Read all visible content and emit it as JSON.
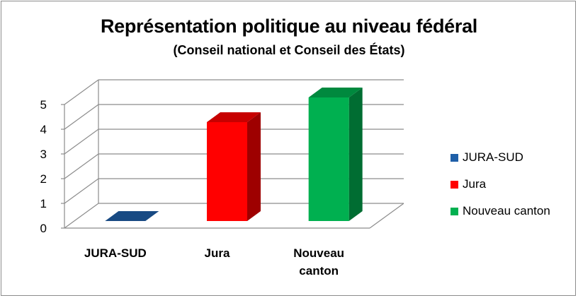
{
  "chart_data": {
    "type": "bar",
    "title": "Représentation politique au niveau fédéral",
    "subtitle": "(Conseil national et Conseil des États)",
    "categories": [
      "JURA-SUD",
      "Jura",
      "Nouveau canton"
    ],
    "category_labels": [
      [
        "JURA-SUD"
      ],
      [
        "Jura"
      ],
      [
        "Nouveau",
        "canton"
      ]
    ],
    "values": [
      0,
      4,
      5
    ],
    "colors": [
      "#1f5fa8",
      "#ff0000",
      "#00b050"
    ],
    "ylim": [
      0,
      5
    ],
    "yticks": [
      0,
      1,
      2,
      3,
      4,
      5
    ],
    "grid": true,
    "legend": [
      "JURA-SUD",
      "Jura",
      "Nouveau canton"
    ],
    "legend_position": "right"
  }
}
